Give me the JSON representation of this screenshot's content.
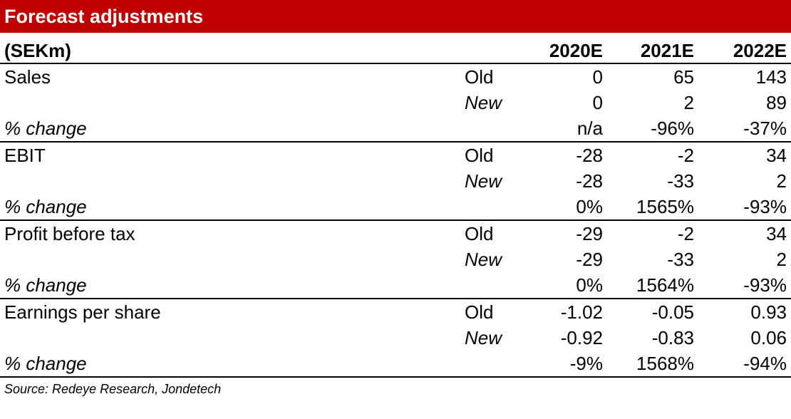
{
  "title": "Forecast adjustments",
  "header": {
    "unit_label": "(SEKm)",
    "years": [
      "2020E",
      "2021E",
      "2022E"
    ]
  },
  "rows": [
    {
      "metric": "Sales",
      "old": {
        "label": "Old",
        "values": [
          "0",
          "65",
          "143"
        ]
      },
      "new": {
        "label": "New",
        "values": [
          "0",
          "2",
          "89"
        ]
      },
      "change": {
        "label": "% change",
        "values": [
          "n/a",
          "-96%",
          "-37%"
        ]
      }
    },
    {
      "metric": "EBIT",
      "old": {
        "label": "Old",
        "values": [
          "-28",
          "-2",
          "34"
        ]
      },
      "new": {
        "label": "New",
        "values": [
          "-28",
          "-33",
          "2"
        ]
      },
      "change": {
        "label": "% change",
        "values": [
          "0%",
          "1565%",
          "-93%"
        ]
      }
    },
    {
      "metric": "Profit before tax",
      "old": {
        "label": "Old",
        "values": [
          "-29",
          "-2",
          "34"
        ]
      },
      "new": {
        "label": "New",
        "values": [
          "-29",
          "-33",
          "2"
        ]
      },
      "change": {
        "label": "% change",
        "values": [
          "0%",
          "1564%",
          "-93%"
        ]
      }
    },
    {
      "metric": "Earnings per share",
      "old": {
        "label": "Old",
        "values": [
          "-1.02",
          "-0.05",
          "0.93"
        ]
      },
      "new": {
        "label": "New",
        "values": [
          "-0.92",
          "-0.83",
          "0.06"
        ]
      },
      "change": {
        "label": "% change",
        "values": [
          "-9%",
          "1568%",
          "-94%"
        ]
      }
    }
  ],
  "source": "Source: Redeye Research, Jondetech",
  "colors": {
    "title_background": "#c00000",
    "title_text": "#ffffff"
  }
}
